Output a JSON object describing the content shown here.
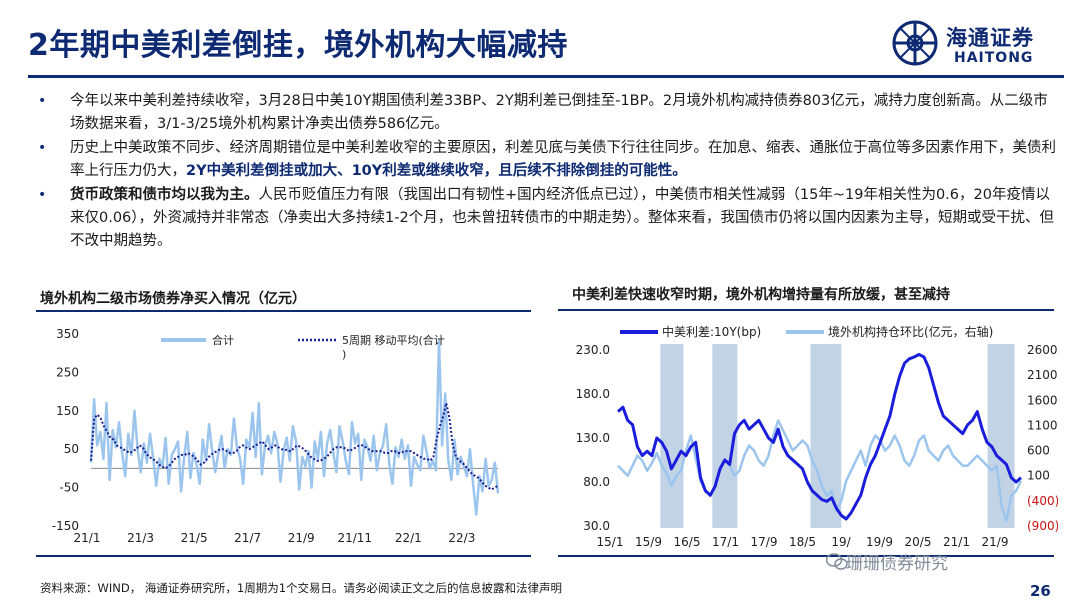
{
  "title": "2年期中美利差倒挂，境外机构大幅减持",
  "logo": {
    "cn": "海通证券",
    "en": "HAITONG"
  },
  "bullets": [
    {
      "parts": [
        {
          "t": "今年以来中美利差持续收窄，3月28日中美10Y期国债利差33BP、2Y期利差已倒挂至-1BP。2月境外机构减持债券803亿元，减持力度创新高。从二级市场数据来看，3/1-3/25境外机构累计净卖出债券586亿元。",
          "s": "n"
        }
      ]
    },
    {
      "parts": [
        {
          "t": "历史上中美政策不同步、经济周期错位是中美利差收窄的主要原因，利差见底与美债下行往往同步。在加息、缩表、通胀位于高位等多因素作用下，美债利率上行压力仍大，",
          "s": "n"
        },
        {
          "t": "2Y中美利差倒挂或加大、10Y利差或继续收窄，且后续不排除倒挂的可能性。",
          "s": "hl"
        }
      ]
    },
    {
      "parts": [
        {
          "t": "货币政策和债市均以我为主。",
          "s": "b"
        },
        {
          "t": "人民币贬值压力有限（我国出口有韧性+国内经济低点已过），中美债市相关性减弱（15年~19年相关性为0.6，20年疫情以来仅0.06），外资减持并非常态（净卖出大多持续1-2个月，也未曾扭转债市的中期走势）。整体来看，我国债市仍将以国内因素为主导，短期或受干扰、但不改中期趋势。",
          "s": "n"
        }
      ]
    }
  ],
  "footer": "资料来源：WIND， 海通证券研究所，1周期为1个交易日。请务必阅读正文之后的信息披露和法律声明",
  "page_number": "26",
  "watermark": "珊珊债券研究",
  "chart_data": [
    {
      "type": "line",
      "title": "境外机构二级市场债券净买入情况（亿元）",
      "x_ticks": [
        "21/1",
        "21/3",
        "21/5",
        "21/7",
        "21/9",
        "21/11",
        "22/1",
        "22/3"
      ],
      "y_ticks": [
        350,
        250,
        150,
        50,
        -50,
        -150
      ],
      "ylim": [
        -150,
        350
      ],
      "legend": [
        "合计",
        "5周期 移动平均(合计\n)"
      ],
      "colors": {
        "total": "#9cc5ee",
        "ma": "#1a1e8e"
      },
      "series": [
        {
          "name": "合计",
          "values": [
            15,
            180,
            60,
            95,
            25,
            170,
            -30,
            100,
            55,
            120,
            40,
            -20,
            90,
            35,
            150,
            50,
            -10,
            65,
            15,
            90,
            30,
            -45,
            25,
            5,
            80,
            -40,
            35,
            50,
            70,
            -60,
            30,
            95,
            -25,
            40,
            10,
            -40,
            75,
            20,
            115,
            45,
            -10,
            40,
            85,
            0,
            50,
            35,
            130,
            55,
            25,
            -40,
            75,
            55,
            145,
            30,
            170,
            -15,
            60,
            85,
            40,
            95,
            65,
            -35,
            45,
            80,
            20,
            110,
            70,
            -55,
            30,
            5,
            45,
            -50,
            70,
            25,
            95,
            -20,
            65,
            100,
            40,
            -10,
            110,
            70,
            20,
            -15,
            120,
            65,
            90,
            -30,
            75,
            55,
            20,
            85,
            -5,
            40,
            60,
            115,
            10,
            -40,
            55,
            30,
            75,
            25,
            60,
            -45,
            30,
            10,
            -5,
            85,
            45,
            0,
            20,
            -5,
            335,
            60,
            195,
            20,
            -30,
            75,
            -15,
            30,
            5,
            -20,
            50,
            -40,
            -120,
            -20,
            -60,
            25,
            -45,
            -30,
            15,
            -65
          ]
        },
        {
          "name": "5周期 移动平均(合计)",
          "values": [
            20,
            130,
            140,
            130,
            110,
            95,
            80,
            75,
            60,
            55,
            50,
            45,
            40,
            45,
            50,
            60,
            55,
            40,
            30,
            25,
            20,
            10,
            5,
            0,
            5,
            15,
            25,
            30,
            35,
            35,
            40,
            35,
            30,
            20,
            10,
            15,
            25,
            35,
            40,
            45,
            50,
            50,
            45,
            40,
            40,
            45,
            55,
            60,
            55,
            50,
            55,
            60,
            65,
            70,
            60,
            50,
            55,
            60,
            55,
            50,
            50,
            45,
            45,
            55,
            60,
            55,
            50,
            40,
            30,
            25,
            20,
            20,
            25,
            30,
            40,
            50,
            55,
            55,
            55,
            50,
            45,
            50,
            55,
            60,
            60,
            55,
            50,
            45,
            45,
            45,
            45,
            40,
            40,
            45,
            45,
            40,
            40,
            45,
            45,
            45,
            40,
            35,
            30,
            25,
            25,
            20,
            30,
            75,
            110,
            135,
            170,
            130,
            60,
            30,
            20,
            15,
            5,
            -5,
            -15,
            -20,
            -25,
            -35,
            -45,
            -50,
            -55,
            -50,
            -45
          ]
        }
      ]
    },
    {
      "type": "line",
      "title": "中美利差快速收窄时期，境外机构增持量有所放缓，甚至减持",
      "x_ticks": [
        "15/1",
        "15/9",
        "16/5",
        "17/1",
        "17/9",
        "18/5",
        "19/",
        "19/9",
        "20/5",
        "21/1",
        "21/9"
      ],
      "y_left_ticks": [
        "230.0",
        "180.0",
        "130.0",
        "80.0",
        "30.0"
      ],
      "y_right_ticks": [
        "2600",
        "2100",
        "1600",
        "1100",
        "600",
        "100",
        "(400)",
        "(900)"
      ],
      "ylim_left": [
        30,
        230
      ],
      "ylim_right": [
        -900,
        2600
      ],
      "legend": [
        "中美利差:10Y(bp)",
        "境外机构持仓环比(亿元，右轴)"
      ],
      "colors": {
        "spread": "#1a1edb",
        "holdings": "#9cc5ee",
        "shade": "#c3d3e6"
      },
      "series": [
        {
          "name": "中美利差:10Y(bp)",
          "values": [
            160,
            165,
            150,
            145,
            120,
            110,
            115,
            110,
            130,
            125,
            115,
            95,
            105,
            115,
            110,
            120,
            125,
            85,
            70,
            65,
            75,
            95,
            105,
            100,
            135,
            145,
            150,
            140,
            145,
            150,
            140,
            130,
            125,
            140,
            120,
            110,
            105,
            100,
            95,
            80,
            70,
            65,
            60,
            58,
            62,
            50,
            42,
            38,
            45,
            55,
            65,
            85,
            100,
            110,
            125,
            140,
            155,
            180,
            200,
            215,
            220,
            222,
            225,
            222,
            210,
            190,
            170,
            155,
            150,
            145,
            140,
            135,
            145,
            150,
            160,
            140,
            125,
            120,
            110,
            105,
            100,
            85,
            80,
            85
          ]
        },
        {
          "name": "境外机构持仓环比(亿元，右轴)",
          "values": [
            300,
            200,
            100,
            300,
            500,
            400,
            200,
            350,
            550,
            300,
            150,
            -100,
            100,
            200,
            600,
            900,
            450,
            0,
            -200,
            -300,
            -100,
            200,
            400,
            300,
            100,
            200,
            500,
            700,
            600,
            400,
            300,
            500,
            900,
            1200,
            1000,
            800,
            600,
            700,
            800,
            700,
            400,
            200,
            -100,
            -300,
            -200,
            -600,
            -400,
            0,
            200,
            400,
            600,
            300,
            700,
            900,
            800,
            600,
            700,
            900,
            700,
            400,
            300,
            500,
            800,
            900,
            600,
            500,
            400,
            600,
            700,
            500,
            400,
            300,
            300,
            400,
            500,
            400,
            300,
            200,
            300,
            -500,
            -800,
            -300,
            -200,
            0
          ]
        }
      ],
      "shaded_periods": [
        "15/6-15/12",
        "16/8-17/3",
        "18/3-18/11",
        "21/9-22/3"
      ]
    }
  ]
}
